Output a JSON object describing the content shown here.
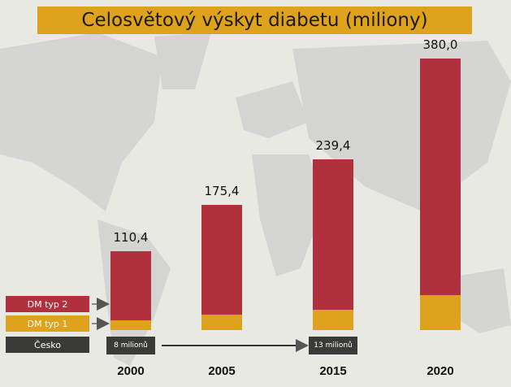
{
  "chart_data": {
    "type": "bar",
    "stacked": true,
    "title": "Celosvětový výskyt diabetu (miliony)",
    "categories": [
      "2000",
      "2005",
      "2015",
      "2020"
    ],
    "totals": [
      110.4,
      175.4,
      239.4,
      380.0
    ],
    "total_labels": [
      "110,4",
      "175,4",
      "239,4",
      "380,0"
    ],
    "type1_share_estimate": [
      0.12,
      0.12,
      0.12,
      0.13
    ],
    "legend": [
      {
        "label": "DM typ 2",
        "color": "#b0313d"
      },
      {
        "label": "DM typ 1",
        "color": "#dfa21c"
      },
      {
        "label": "Česko",
        "color": "#3a3a38"
      }
    ],
    "cesko_notes": [
      {
        "year": "2000",
        "label": "8 milionů"
      },
      {
        "year": "2015",
        "label": "13 milionů"
      }
    ],
    "background": "world map"
  }
}
